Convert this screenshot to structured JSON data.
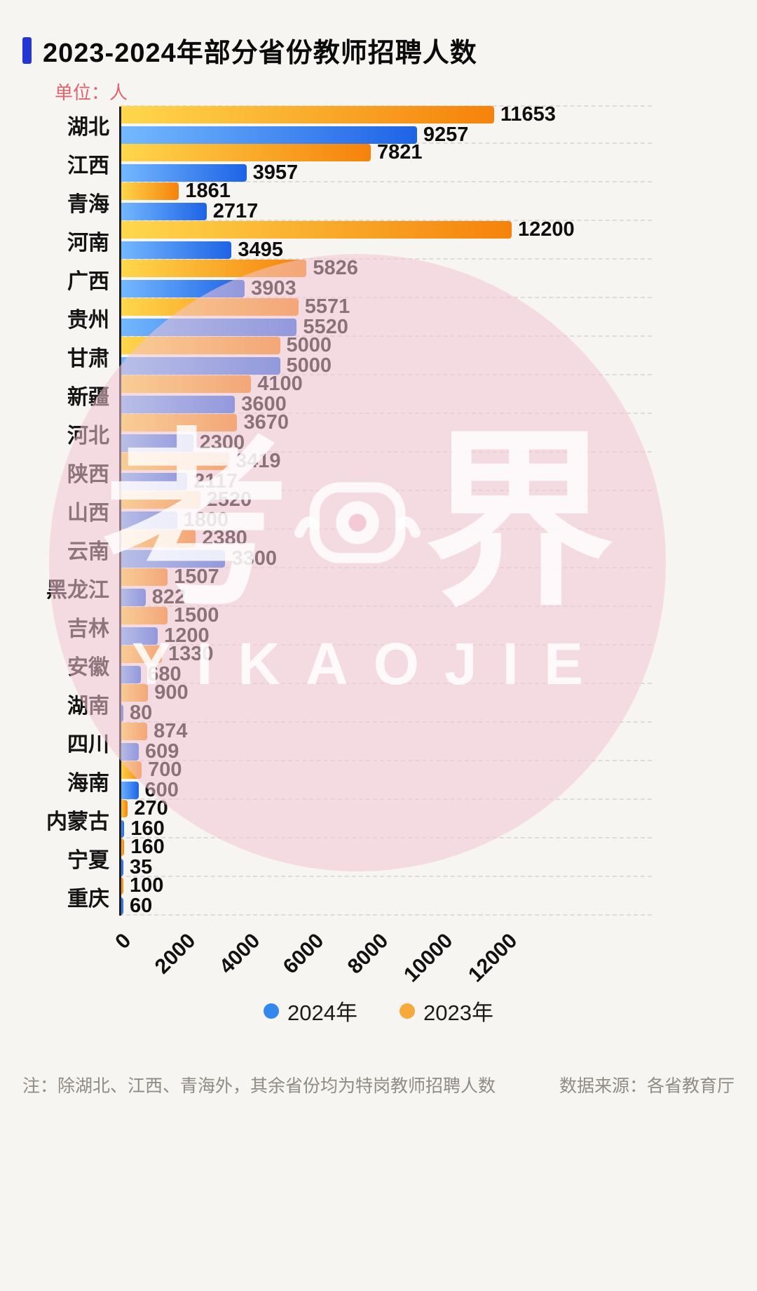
{
  "header": {
    "title": "2023-2024年部分省份教师招聘人数",
    "unit_label": "单位：人"
  },
  "chart_data": {
    "type": "bar",
    "orientation": "horizontal",
    "title": "2023-2024年部分省份教师招聘人数",
    "unit": "人",
    "categories": [
      "湖北",
      "江西",
      "青海",
      "河南",
      "广西",
      "贵州",
      "甘肃",
      "新疆",
      "河北",
      "陕西",
      "山西",
      "云南",
      "黑龙江",
      "吉林",
      "安徽",
      "湖南",
      "四川",
      "海南",
      "内蒙古",
      "宁夏",
      "重庆"
    ],
    "series": [
      {
        "key": "2023",
        "name": "2023年",
        "gradient": [
          "#ffd84d",
          "#f5820b"
        ],
        "values": [
          11653,
          7821,
          1861,
          12200,
          5826,
          5571,
          5000,
          4100,
          3670,
          3419,
          2520,
          2380,
          1507,
          1500,
          1330,
          900,
          874,
          700,
          270,
          160,
          100
        ]
      },
      {
        "key": "2024",
        "name": "2024年",
        "gradient": [
          "#74b9ff",
          "#1e63e6"
        ],
        "values": [
          9257,
          3957,
          2717,
          3495,
          3903,
          5520,
          5000,
          3600,
          2300,
          2117,
          1800,
          3300,
          822,
          1200,
          680,
          80,
          609,
          600,
          160,
          35,
          60
        ]
      }
    ],
    "xlim": [
      0,
      12200
    ],
    "x_ticks": [
      0,
      2000,
      4000,
      6000,
      8000,
      10000,
      12000
    ],
    "legend_position": "bottom",
    "grid": "dashed-horizontal"
  },
  "legend": {
    "items": [
      {
        "label": "2024年",
        "color": "#3388f0"
      },
      {
        "label": "2023年",
        "color": "#f8a93c"
      }
    ]
  },
  "watermark": {
    "glyph_left": "考",
    "glyph_right": "界",
    "latin": "YIKAOJIE"
  },
  "footer": {
    "note": "注：除湖北、江西、青海外，其余省份均为特岗教师招聘人数",
    "source": "数据来源：各省教育厅"
  }
}
